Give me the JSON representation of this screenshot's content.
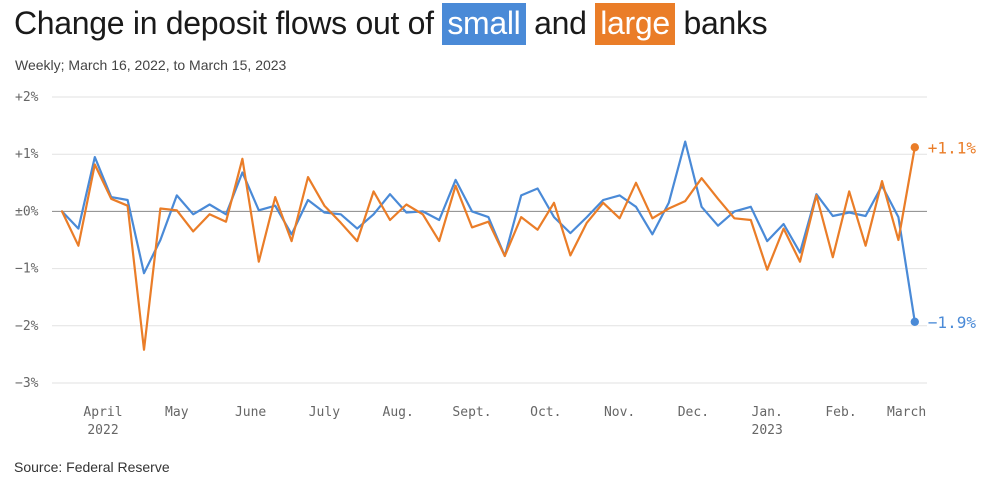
{
  "title": {
    "before": "Change in deposit flows out of ",
    "small": "small",
    "middle": " and ",
    "large": "large",
    "after": " banks"
  },
  "subtitle": "Weekly; March 16, 2022, to March 15, 2023",
  "source": "Source: Federal Reserve",
  "colors": {
    "small": "#4a8ad7",
    "large": "#ea7d28",
    "grid": "#e2e2e2",
    "zero": "#888888",
    "text": "#666666"
  },
  "chart_data": {
    "type": "line",
    "title": "Change in deposit flows out of small and large banks",
    "subtitle": "Weekly; March 16, 2022, to March 15, 2023",
    "ylabel": "",
    "xlabel": "",
    "ylim": [
      -3,
      2
    ],
    "y_ticks": [
      {
        "value": 2,
        "label": "+2%"
      },
      {
        "value": 1,
        "label": "+1%"
      },
      {
        "value": 0,
        "label": "±0%"
      },
      {
        "value": -1,
        "label": "−1%"
      },
      {
        "value": -2,
        "label": "−2%"
      },
      {
        "value": -3,
        "label": "−3%"
      }
    ],
    "x_ticks": [
      {
        "index": 2.5,
        "label": "April",
        "sublabel": "2022"
      },
      {
        "index": 7,
        "label": "May",
        "sublabel": ""
      },
      {
        "index": 11.5,
        "label": "June",
        "sublabel": ""
      },
      {
        "index": 16,
        "label": "July",
        "sublabel": ""
      },
      {
        "index": 20.5,
        "label": "Aug.",
        "sublabel": ""
      },
      {
        "index": 25,
        "label": "Sept.",
        "sublabel": ""
      },
      {
        "index": 29.5,
        "label": "Oct.",
        "sublabel": ""
      },
      {
        "index": 34,
        "label": "Nov.",
        "sublabel": ""
      },
      {
        "index": 38.5,
        "label": "Dec.",
        "sublabel": ""
      },
      {
        "index": 43,
        "label": "Jan.",
        "sublabel": "2023"
      },
      {
        "index": 47.5,
        "label": "Feb.",
        "sublabel": ""
      },
      {
        "index": 51.5,
        "label": "March",
        "sublabel": ""
      }
    ],
    "series": [
      {
        "name": "small",
        "color": "#4a8ad7",
        "end_label": "−1.9%",
        "values": [
          0.0,
          -0.3,
          0.95,
          0.25,
          0.2,
          -1.08,
          -0.5,
          0.28,
          -0.05,
          0.12,
          -0.05,
          0.68,
          0.02,
          0.1,
          -0.4,
          0.2,
          -0.02,
          -0.05,
          -0.3,
          -0.05,
          0.3,
          -0.02,
          0.0,
          -0.15,
          0.55,
          0.0,
          -0.1,
          -0.78,
          0.28,
          0.4,
          -0.1,
          -0.38,
          -0.1,
          0.2,
          0.28,
          0.08,
          -0.4,
          0.15,
          1.22,
          0.08,
          -0.25,
          0.0,
          0.08,
          -0.52,
          -0.22,
          -0.72,
          0.3,
          -0.08,
          -0.02,
          -0.08,
          0.45,
          -0.1,
          -1.93
        ]
      },
      {
        "name": "large",
        "color": "#ea7d28",
        "end_label": "+1.1%",
        "values": [
          0.0,
          -0.6,
          0.82,
          0.22,
          0.1,
          -2.42,
          0.05,
          0.02,
          -0.35,
          -0.05,
          -0.18,
          0.92,
          -0.88,
          0.25,
          -0.52,
          0.6,
          0.1,
          -0.2,
          -0.52,
          0.35,
          -0.15,
          0.12,
          -0.05,
          -0.52,
          0.45,
          -0.28,
          -0.18,
          -0.78,
          -0.1,
          -0.32,
          0.15,
          -0.77,
          -0.2,
          0.15,
          -0.12,
          0.5,
          -0.12,
          0.05,
          0.18,
          0.58,
          0.22,
          -0.12,
          -0.15,
          -1.02,
          -0.3,
          -0.88,
          0.28,
          -0.8,
          0.35,
          -0.6,
          0.53,
          -0.5,
          1.12
        ]
      }
    ]
  }
}
